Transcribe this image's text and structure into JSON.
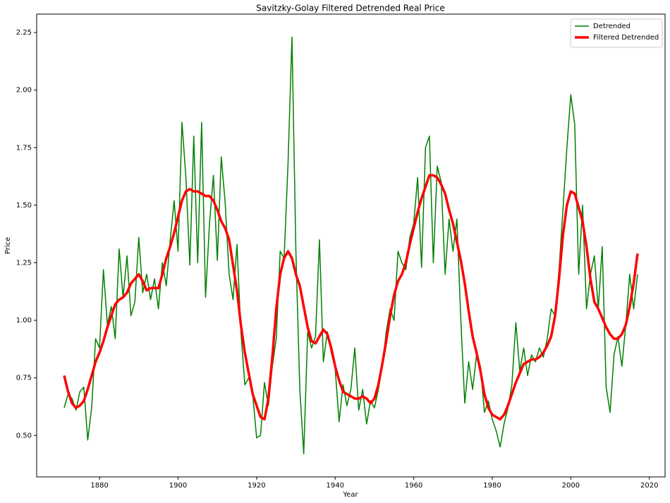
{
  "chart_data": {
    "type": "line",
    "title": "Savitzky-Golay Filtered Detrended Real Price",
    "x_label": "Year",
    "y_label": "Price",
    "xlim": [
      1864,
      2024
    ],
    "ylim": [
      0.32,
      2.33
    ],
    "xticks": [
      1880,
      1900,
      1920,
      1940,
      1960,
      1980,
      2000,
      2020
    ],
    "yticks": [
      {
        "value": 0.5,
        "label": "0.50"
      },
      {
        "value": 0.75,
        "label": "0.75"
      },
      {
        "value": 1,
        "label": "1.00"
      },
      {
        "value": 1.25,
        "label": "1.25"
      },
      {
        "value": 1.5,
        "label": "1.50"
      },
      {
        "value": 1.75,
        "label": "1.75"
      },
      {
        "value": 2,
        "label": "2.00"
      },
      {
        "value": 2.25,
        "label": "2.25"
      }
    ],
    "grid": false,
    "legend": "upper right",
    "x": [
      1871,
      1872,
      1873,
      1874,
      1875,
      1876,
      1877,
      1878,
      1879,
      1880,
      1881,
      1882,
      1883,
      1884,
      1885,
      1886,
      1887,
      1888,
      1889,
      1890,
      1891,
      1892,
      1893,
      1894,
      1895,
      1896,
      1897,
      1898,
      1899,
      1900,
      1901,
      1902,
      1903,
      1904,
      1905,
      1906,
      1907,
      1908,
      1909,
      1910,
      1911,
      1912,
      1913,
      1914,
      1915,
      1916,
      1917,
      1918,
      1919,
      1920,
      1921,
      1922,
      1923,
      1924,
      1925,
      1926,
      1927,
      1928,
      1929,
      1930,
      1931,
      1932,
      1933,
      1934,
      1935,
      1936,
      1937,
      1938,
      1939,
      1940,
      1941,
      1942,
      1943,
      1944,
      1945,
      1946,
      1947,
      1948,
      1949,
      1950,
      1951,
      1952,
      1953,
      1954,
      1955,
      1956,
      1957,
      1958,
      1959,
      1960,
      1961,
      1962,
      1963,
      1964,
      1965,
      1966,
      1967,
      1968,
      1969,
      1970,
      1971,
      1972,
      1973,
      1974,
      1975,
      1976,
      1977,
      1978,
      1979,
      1980,
      1981,
      1982,
      1983,
      1984,
      1985,
      1986,
      1987,
      1988,
      1989,
      1990,
      1991,
      1992,
      1993,
      1994,
      1995,
      1996,
      1997,
      1998,
      1999,
      2000,
      2001,
      2002,
      2003,
      2004,
      2005,
      2006,
      2007,
      2008,
      2009,
      2010,
      2011,
      2012,
      2013,
      2014,
      2015,
      2016,
      2017
    ],
    "series": [
      {
        "name": "Detrended",
        "color": "#008000",
        "width": 1.5,
        "values": [
          0.62,
          0.68,
          0.66,
          0.61,
          0.69,
          0.71,
          0.48,
          0.62,
          0.92,
          0.88,
          1.22,
          0.98,
          1.06,
          0.92,
          1.31,
          1.1,
          1.28,
          1.02,
          1.08,
          1.36,
          1.12,
          1.2,
          1.09,
          1.18,
          1.05,
          1.25,
          1.15,
          1.35,
          1.52,
          1.3,
          1.86,
          1.62,
          1.24,
          1.8,
          1.25,
          1.86,
          1.1,
          1.42,
          1.63,
          1.26,
          1.71,
          1.51,
          1.2,
          1.09,
          1.33,
          0.95,
          0.72,
          0.75,
          0.68,
          0.49,
          0.5,
          0.73,
          0.63,
          0.8,
          0.92,
          1.3,
          1.27,
          1.68,
          2.23,
          1.3,
          0.7,
          0.42,
          0.95,
          0.88,
          0.93,
          1.35,
          0.82,
          0.95,
          0.86,
          0.79,
          0.56,
          0.72,
          0.63,
          0.7,
          0.88,
          0.61,
          0.7,
          0.55,
          0.65,
          0.62,
          0.7,
          0.8,
          0.95,
          1.05,
          1.0,
          1.3,
          1.25,
          1.22,
          1.36,
          1.42,
          1.62,
          1.23,
          1.75,
          1.8,
          1.25,
          1.67,
          1.6,
          1.2,
          1.44,
          1.3,
          1.44,
          1.0,
          0.64,
          0.82,
          0.7,
          0.85,
          0.8,
          0.6,
          0.65,
          0.57,
          0.52,
          0.45,
          0.55,
          0.62,
          0.72,
          0.99,
          0.78,
          0.88,
          0.76,
          0.85,
          0.82,
          0.88,
          0.84,
          0.92,
          1.05,
          1.02,
          1.22,
          1.48,
          1.75,
          1.98,
          1.85,
          1.2,
          1.5,
          1.05,
          1.2,
          1.28,
          1.05,
          1.32,
          0.71,
          0.6,
          0.85,
          0.93,
          0.8,
          0.98,
          1.2,
          1.05,
          1.2
        ]
      },
      {
        "name": "Filtered Detrended",
        "color": "#ff0000",
        "width": 3.5,
        "values": [
          0.76,
          0.69,
          0.64,
          0.62,
          0.63,
          0.65,
          0.7,
          0.76,
          0.82,
          0.86,
          0.91,
          0.97,
          1.02,
          1.07,
          1.09,
          1.1,
          1.12,
          1.16,
          1.18,
          1.2,
          1.17,
          1.13,
          1.14,
          1.14,
          1.14,
          1.2,
          1.27,
          1.32,
          1.38,
          1.45,
          1.52,
          1.56,
          1.57,
          1.56,
          1.56,
          1.55,
          1.54,
          1.54,
          1.52,
          1.48,
          1.43,
          1.4,
          1.35,
          1.24,
          1.13,
          0.98,
          0.86,
          0.77,
          0.68,
          0.63,
          0.58,
          0.57,
          0.66,
          0.84,
          1.05,
          1.2,
          1.27,
          1.3,
          1.27,
          1.2,
          1.15,
          1.06,
          0.97,
          0.91,
          0.9,
          0.93,
          0.96,
          0.94,
          0.88,
          0.8,
          0.74,
          0.69,
          0.68,
          0.67,
          0.66,
          0.66,
          0.67,
          0.66,
          0.64,
          0.66,
          0.72,
          0.81,
          0.91,
          1.02,
          1.11,
          1.17,
          1.2,
          1.25,
          1.33,
          1.4,
          1.47,
          1.53,
          1.58,
          1.63,
          1.63,
          1.62,
          1.59,
          1.55,
          1.48,
          1.42,
          1.34,
          1.26,
          1.16,
          1.04,
          0.93,
          0.86,
          0.78,
          0.68,
          0.62,
          0.59,
          0.58,
          0.57,
          0.59,
          0.63,
          0.68,
          0.73,
          0.77,
          0.81,
          0.82,
          0.83,
          0.83,
          0.84,
          0.86,
          0.89,
          0.93,
          1.02,
          1.18,
          1.37,
          1.5,
          1.56,
          1.55,
          1.49,
          1.43,
          1.32,
          1.18,
          1.08,
          1.05,
          1.01,
          0.97,
          0.94,
          0.92,
          0.92,
          0.94,
          0.98,
          1.06,
          1.16,
          1.29
        ]
      }
    ]
  }
}
